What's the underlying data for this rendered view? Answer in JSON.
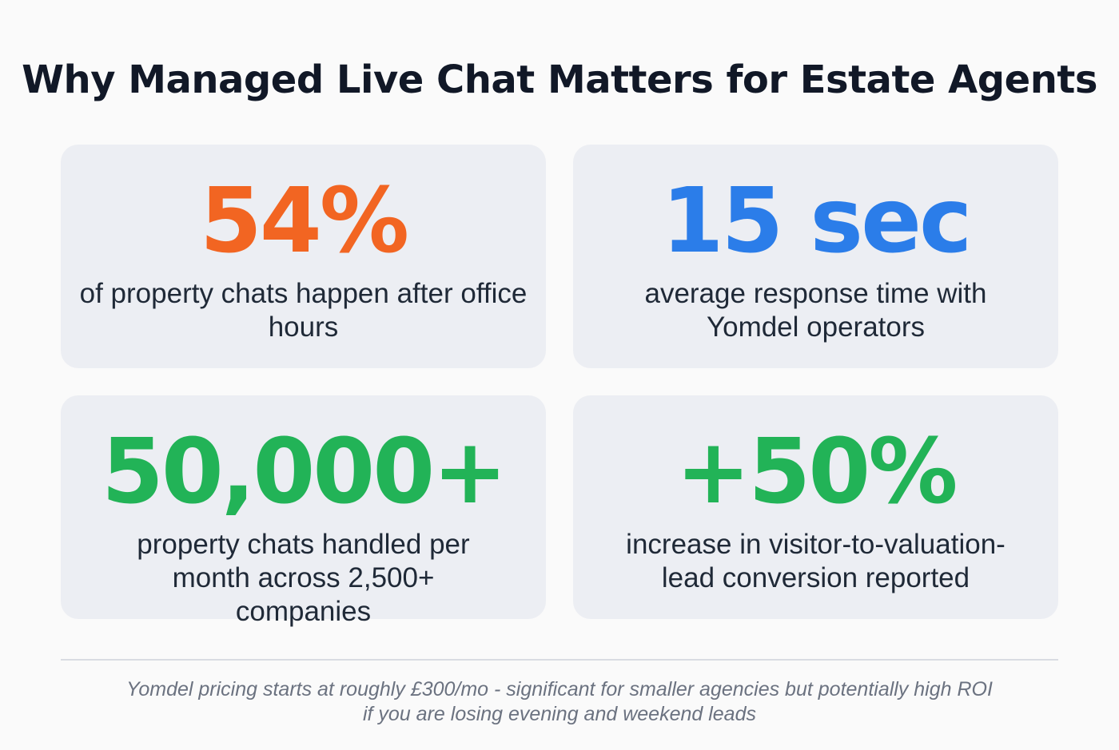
{
  "title": "Why Managed Live Chat Matters for Estate Agents",
  "stats": [
    {
      "value": "54%",
      "description": "of property chats happen after office hours",
      "color": "#f26522"
    },
    {
      "value": "15 sec",
      "description": "average response time with Yomdel operators",
      "color": "#2b7de9"
    },
    {
      "value": "50,000+",
      "description": "property chats handled per month across 2,500+ companies",
      "color": "#22b357"
    },
    {
      "value": "+50%",
      "description": "increase in visitor-to-valuation-lead conversion reported",
      "color": "#22b357"
    }
  ],
  "footer": "Yomdel pricing starts at roughly £300/mo - significant for smaller agencies but potentially high ROI if you are losing evening and weekend leads"
}
